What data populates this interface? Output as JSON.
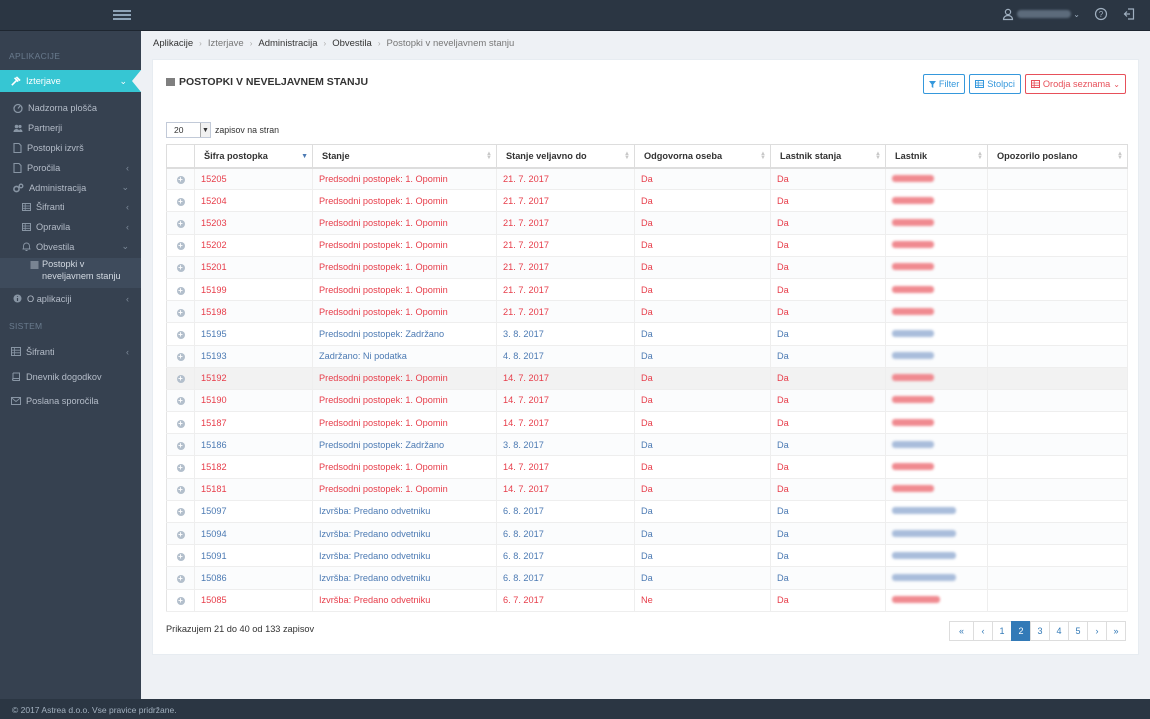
{
  "topbar": {
    "icons": [
      "menu-icon",
      "user-icon",
      "help-icon",
      "logout-icon"
    ]
  },
  "sidebar": {
    "sections": {
      "apps": "APLIKACIJE",
      "system": "SISTEM"
    },
    "items": [
      {
        "label": "Izterjave",
        "icon": "gavel-icon",
        "chev": "⌄"
      },
      {
        "label": "Nadzorna plošča",
        "icon": "dashboard-icon"
      },
      {
        "label": "Partnerji",
        "icon": "users-icon"
      },
      {
        "label": "Postopki izvrš",
        "icon": "doc-icon"
      },
      {
        "label": "Poročila",
        "icon": "doc-icon",
        "chev": "‹"
      },
      {
        "label": "Administracija",
        "icon": "cogs-icon",
        "chev": "⌄"
      },
      {
        "label": "Šifranti",
        "icon": "table-icon",
        "chev": "‹"
      },
      {
        "label": "Opravila",
        "icon": "table-icon",
        "chev": "‹"
      },
      {
        "label": "Obvestila",
        "icon": "bell-icon",
        "chev": "⌄"
      },
      {
        "label": "Postopki v neveljavnem stanju",
        "icon": "list-icon"
      },
      {
        "label": "O aplikaciji",
        "icon": "info-icon",
        "chev": "‹"
      },
      {
        "label": "Šifranti",
        "icon": "table-icon",
        "chev": "‹"
      },
      {
        "label": "Dnevnik dogodkov",
        "icon": "book-icon"
      },
      {
        "label": "Poslana sporočila",
        "icon": "envelope-icon"
      }
    ]
  },
  "breadcrumb": [
    "Aplikacije",
    "Izterjave",
    "Administracija",
    "Obvestila",
    "Postopki v neveljavnem stanju"
  ],
  "portlet": {
    "title": "POSTOPKI V NEVELJAVNEM STANJU",
    "buttons": {
      "filter": "Filter",
      "columns": "Stolpci",
      "tools": "Orodja seznama"
    }
  },
  "length": {
    "value": "20",
    "suffix": "zapisov na stran"
  },
  "table": {
    "columns": [
      "",
      "Šifra postopka",
      "Stanje",
      "Stanje veljavno do",
      "Odgovorna oseba",
      "Lastnik stanja",
      "Lastnik",
      "Opozorilo poslano"
    ],
    "rows": [
      {
        "id": "15205",
        "stanje": "Predsodni postopek: 1. Opomin",
        "do": "21. 7. 2017",
        "oseba": "Da",
        "lastnik_stanja": "Da",
        "color": "red"
      },
      {
        "id": "15204",
        "stanje": "Predsodni postopek: 1. Opomin",
        "do": "21. 7. 2017",
        "oseba": "Da",
        "lastnik_stanja": "Da",
        "color": "red"
      },
      {
        "id": "15203",
        "stanje": "Predsodni postopek: 1. Opomin",
        "do": "21. 7. 2017",
        "oseba": "Da",
        "lastnik_stanja": "Da",
        "color": "red"
      },
      {
        "id": "15202",
        "stanje": "Predsodni postopek: 1. Opomin",
        "do": "21. 7. 2017",
        "oseba": "Da",
        "lastnik_stanja": "Da",
        "color": "red"
      },
      {
        "id": "15201",
        "stanje": "Predsodni postopek: 1. Opomin",
        "do": "21. 7. 2017",
        "oseba": "Da",
        "lastnik_stanja": "Da",
        "color": "red"
      },
      {
        "id": "15199",
        "stanje": "Predsodni postopek: 1. Opomin",
        "do": "21. 7. 2017",
        "oseba": "Da",
        "lastnik_stanja": "Da",
        "color": "red"
      },
      {
        "id": "15198",
        "stanje": "Predsodni postopek: 1. Opomin",
        "do": "21. 7. 2017",
        "oseba": "Da",
        "lastnik_stanja": "Da",
        "color": "red"
      },
      {
        "id": "15195",
        "stanje": "Predsodni postopek: Zadržano",
        "do": "3. 8. 2017",
        "oseba": "Da",
        "lastnik_stanja": "Da",
        "color": "blue"
      },
      {
        "id": "15193",
        "stanje": "Zadržano: Ni podatka",
        "do": "4. 8. 2017",
        "oseba": "Da",
        "lastnik_stanja": "Da",
        "color": "blue"
      },
      {
        "id": "15192",
        "stanje": "Predsodni postopek: 1. Opomin",
        "do": "14. 7. 2017",
        "oseba": "Da",
        "lastnik_stanja": "Da",
        "color": "red"
      },
      {
        "id": "15190",
        "stanje": "Predsodni postopek: 1. Opomin",
        "do": "14. 7. 2017",
        "oseba": "Da",
        "lastnik_stanja": "Da",
        "color": "red"
      },
      {
        "id": "15187",
        "stanje": "Predsodni postopek: 1. Opomin",
        "do": "14. 7. 2017",
        "oseba": "Da",
        "lastnik_stanja": "Da",
        "color": "red"
      },
      {
        "id": "15186",
        "stanje": "Predsodni postopek: Zadržano",
        "do": "3. 8. 2017",
        "oseba": "Da",
        "lastnik_stanja": "Da",
        "color": "blue"
      },
      {
        "id": "15182",
        "stanje": "Predsodni postopek: 1. Opomin",
        "do": "14. 7. 2017",
        "oseba": "Da",
        "lastnik_stanja": "Da",
        "color": "red"
      },
      {
        "id": "15181",
        "stanje": "Predsodni postopek: 1. Opomin",
        "do": "14. 7. 2017",
        "oseba": "Da",
        "lastnik_stanja": "Da",
        "color": "red"
      },
      {
        "id": "15097",
        "stanje": "Izvršba: Predano odvetniku",
        "do": "6. 8. 2017",
        "oseba": "Da",
        "lastnik_stanja": "Da",
        "color": "blue"
      },
      {
        "id": "15094",
        "stanje": "Izvršba: Predano odvetniku",
        "do": "6. 8. 2017",
        "oseba": "Da",
        "lastnik_stanja": "Da",
        "color": "blue"
      },
      {
        "id": "15091",
        "stanje": "Izvršba: Predano odvetniku",
        "do": "6. 8. 2017",
        "oseba": "Da",
        "lastnik_stanja": "Da",
        "color": "blue"
      },
      {
        "id": "15086",
        "stanje": "Izvršba: Predano odvetniku",
        "do": "6. 8. 2017",
        "oseba": "Da",
        "lastnik_stanja": "Da",
        "color": "blue"
      },
      {
        "id": "15085",
        "stanje": "Izvršba: Predano odvetniku",
        "do": "6. 7. 2017",
        "oseba": "Ne",
        "lastnik_stanja": "Da",
        "color": "red"
      }
    ]
  },
  "info": "Prikazujem 21 do 40 od 133 zapisov",
  "pager": [
    "«",
    "‹",
    "1",
    "2",
    "3",
    "4",
    "5",
    "›",
    "»"
  ],
  "pager_active": "2",
  "footer": "© 2017 Astrea d.o.o. Vse pravice pridržane.",
  "colors": {
    "accent": "#36c6d3",
    "sidebar": "#364150",
    "topbar": "#2b3643",
    "red": "#e73d4a",
    "blue": "#4c7ab3",
    "primary": "#337ab7"
  }
}
